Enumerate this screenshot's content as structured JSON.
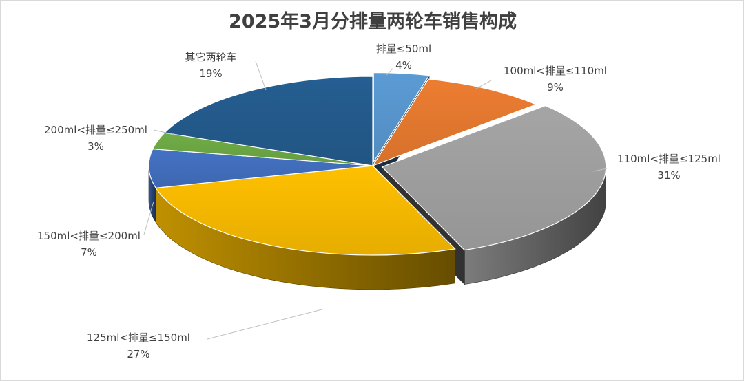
{
  "chart_data": {
    "type": "pie",
    "title": "2025年3月分排量两轮车销售构成",
    "series": [
      {
        "values": [
          4,
          9,
          31,
          27,
          7,
          3,
          19
        ],
        "labels": [
          "4%",
          "9%",
          "31%",
          "27%",
          "7%",
          "3%",
          "19%"
        ]
      }
    ],
    "categories": [
      "排量≤50ml",
      "100ml<排量≤110ml",
      "110ml<排量≤125ml",
      "125ml<排量≤150ml",
      "150ml<排量≤200ml",
      "200ml<排量≤250ml",
      "其它两轮车"
    ],
    "colors": [
      "#5b9bd5",
      "#ed7d31",
      "#a5a5a5",
      "#ffc000",
      "#4472c4",
      "#70ad47",
      "#255e91"
    ],
    "style": "3d-exploded",
    "legend": "none",
    "grid": false
  }
}
